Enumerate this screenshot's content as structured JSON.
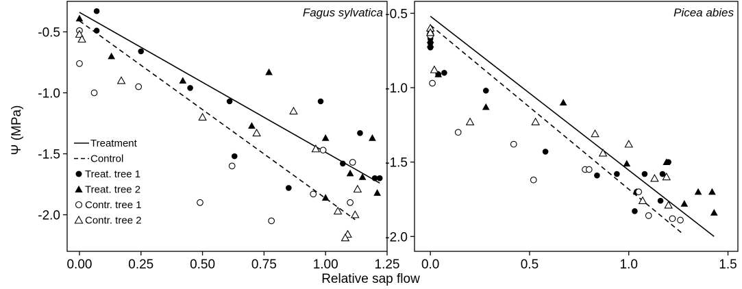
{
  "figure": {
    "ylabel": "Ψ (MPa)",
    "xlabel": "Relative sap flow"
  },
  "legend": [
    {
      "label": "Treatment",
      "kind": "line-solid"
    },
    {
      "label": "Control",
      "kind": "line-dashed"
    },
    {
      "label": "Treat. tree 1",
      "kind": "circle-filled"
    },
    {
      "label": "Treat. tree 2",
      "kind": "triangle-filled"
    },
    {
      "label": "Contr. tree 1",
      "kind": "circle-open"
    },
    {
      "label": "Contr. tree 2",
      "kind": "triangle-open"
    }
  ],
  "chart_data": [
    {
      "type": "scatter",
      "title": "Fagus sylvatica",
      "xlim": [
        -0.05,
        1.25
      ],
      "ylim": [
        -2.3,
        -0.25
      ],
      "xticks": [
        0.0,
        0.25,
        0.5,
        0.75,
        1.0,
        1.25
      ],
      "xtick_labels": [
        "0.00",
        "0.25",
        "0.50",
        "0.75",
        "1.00",
        "1.25"
      ],
      "yticks": [
        -2.0,
        -1.5,
        -1.0,
        -0.5
      ],
      "ytick_labels": [
        "-2.0",
        "-1.5",
        "-1.0",
        "-0.5"
      ],
      "lines": [
        {
          "name": "Treatment",
          "style": "solid",
          "x": [
            0.0,
            1.22
          ],
          "y": [
            -0.34,
            -1.74
          ]
        },
        {
          "name": "Control",
          "style": "dashed",
          "x": [
            0.0,
            1.12
          ],
          "y": [
            -0.41,
            -2.04
          ]
        }
      ],
      "series": [
        {
          "name": "Treat. tree 1",
          "marker": "circle-filled",
          "points": [
            [
              0.07,
              -0.33
            ],
            [
              0.07,
              -0.49
            ],
            [
              0.25,
              -0.66
            ],
            [
              0.45,
              -0.96
            ],
            [
              0.61,
              -1.07
            ],
            [
              0.63,
              -1.52
            ],
            [
              0.85,
              -1.78
            ],
            [
              0.98,
              -1.07
            ],
            [
              1.07,
              -1.58
            ],
            [
              1.14,
              -1.33
            ],
            [
              1.2,
              -1.7
            ],
            [
              1.22,
              -1.7
            ]
          ]
        },
        {
          "name": "Treat. tree 2",
          "marker": "triangle-filled",
          "points": [
            [
              0.0,
              -0.39
            ],
            [
              0.13,
              -0.7
            ],
            [
              0.42,
              -0.9
            ],
            [
              0.7,
              -1.27
            ],
            [
              0.77,
              -0.83
            ],
            [
              1.0,
              -1.37
            ],
            [
              1.0,
              -1.86
            ],
            [
              1.1,
              -1.66
            ],
            [
              1.15,
              -1.69
            ],
            [
              1.19,
              -1.37
            ],
            [
              1.21,
              -1.82
            ]
          ]
        },
        {
          "name": "Contr. tree 1",
          "marker": "circle-open",
          "points": [
            [
              0.0,
              -0.49
            ],
            [
              0.0,
              -0.76
            ],
            [
              0.06,
              -1.0
            ],
            [
              0.24,
              -0.95
            ],
            [
              0.49,
              -1.9
            ],
            [
              0.62,
              -1.6
            ],
            [
              0.78,
              -2.05
            ],
            [
              0.95,
              -1.83
            ],
            [
              0.99,
              -1.47
            ],
            [
              1.1,
              -1.9
            ],
            [
              1.11,
              -1.57
            ]
          ]
        },
        {
          "name": "Contr. tree 2",
          "marker": "triangle-open",
          "points": [
            [
              0.0,
              -0.52
            ],
            [
              0.01,
              -0.56
            ],
            [
              0.17,
              -0.9
            ],
            [
              0.5,
              -1.2
            ],
            [
              0.72,
              -1.33
            ],
            [
              0.87,
              -1.15
            ],
            [
              0.96,
              -1.46
            ],
            [
              1.05,
              -1.97
            ],
            [
              1.09,
              -2.16
            ],
            [
              1.08,
              -2.19
            ],
            [
              1.12,
              -2.0
            ],
            [
              1.13,
              -1.79
            ]
          ]
        }
      ]
    },
    {
      "type": "scatter",
      "title": "Picea abies",
      "xlim": [
        -0.08,
        1.55
      ],
      "ylim": [
        -2.1,
        -0.42
      ],
      "xticks": [
        0.0,
        0.5,
        1.0,
        1.5
      ],
      "xtick_labels": [
        "0.0",
        "0.5",
        "1.0",
        "1.5"
      ],
      "yticks": [
        -2.0,
        -1.5,
        -1.0,
        -0.5
      ],
      "ytick_labels": [
        "-2.0",
        "-1.5",
        "-1.0",
        "-0.5"
      ],
      "lines": [
        {
          "name": "Treatment",
          "style": "solid",
          "x": [
            0.0,
            1.43
          ],
          "y": [
            -0.52,
            -2.0
          ]
        },
        {
          "name": "Control",
          "style": "dashed",
          "x": [
            0.0,
            1.27
          ],
          "y": [
            -0.58,
            -1.98
          ]
        }
      ],
      "series": [
        {
          "name": "Treat. tree 1",
          "marker": "circle-filled",
          "points": [
            [
              0.0,
              -0.63
            ],
            [
              0.0,
              -0.67
            ],
            [
              0.0,
              -0.7
            ],
            [
              0.0,
              -0.73
            ],
            [
              0.04,
              -0.91
            ],
            [
              0.07,
              -0.9
            ],
            [
              0.28,
              -1.02
            ],
            [
              0.58,
              -1.43
            ],
            [
              0.84,
              -1.59
            ],
            [
              0.94,
              -1.58
            ],
            [
              1.03,
              -1.83
            ],
            [
              1.04,
              -1.7
            ],
            [
              1.08,
              -1.58
            ],
            [
              1.16,
              -1.76
            ],
            [
              1.17,
              -1.58
            ],
            [
              1.2,
              -1.5
            ]
          ]
        },
        {
          "name": "Treat. tree 2",
          "marker": "triangle-filled",
          "points": [
            [
              0.0,
              -0.62
            ],
            [
              0.0,
              -0.68
            ],
            [
              0.0,
              -0.71
            ],
            [
              0.04,
              -0.91
            ],
            [
              0.28,
              -1.13
            ],
            [
              0.67,
              -1.1
            ],
            [
              0.99,
              -1.51
            ],
            [
              1.04,
              -1.7
            ],
            [
              1.19,
              -1.5
            ],
            [
              1.28,
              -1.78
            ],
            [
              1.35,
              -1.7
            ],
            [
              1.42,
              -1.7
            ],
            [
              1.43,
              -1.84
            ]
          ]
        },
        {
          "name": "Contr. tree 1",
          "marker": "circle-open",
          "points": [
            [
              0.0,
              -0.65
            ],
            [
              0.01,
              -0.97
            ],
            [
              0.14,
              -1.3
            ],
            [
              0.42,
              -1.38
            ],
            [
              0.52,
              -1.62
            ],
            [
              0.78,
              -1.55
            ],
            [
              0.8,
              -1.55
            ],
            [
              1.05,
              -1.7
            ],
            [
              1.1,
              -1.86
            ],
            [
              1.22,
              -1.88
            ],
            [
              1.26,
              -1.89
            ]
          ]
        },
        {
          "name": "Contr. tree 2",
          "marker": "triangle-open",
          "points": [
            [
              0.0,
              -0.6
            ],
            [
              0.0,
              -0.63
            ],
            [
              0.02,
              -0.88
            ],
            [
              0.2,
              -1.23
            ],
            [
              0.53,
              -1.23
            ],
            [
              0.83,
              -1.31
            ],
            [
              0.87,
              -1.44
            ],
            [
              1.0,
              -1.38
            ],
            [
              1.07,
              -1.76
            ],
            [
              1.13,
              -1.61
            ],
            [
              1.19,
              -1.6
            ],
            [
              1.2,
              -1.79
            ]
          ]
        }
      ]
    }
  ]
}
